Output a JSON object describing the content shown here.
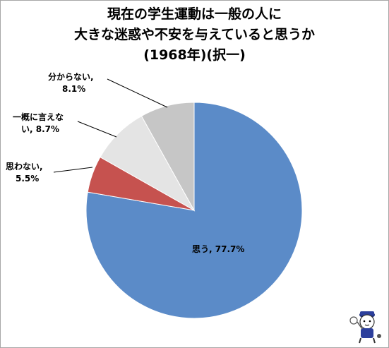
{
  "title_lines": [
    "現在の学生運動は一般の人に",
    "大きな迷惑や不安を与えていると思うか",
    "(1968年)(択一)"
  ],
  "chart_data": {
    "type": "pie",
    "title": "現在の学生運動は一般の人に大きな迷惑や不安を与えていると思うか(1968年)(択一)",
    "categories": [
      "思う",
      "思わない",
      "一概に言えない",
      "分からない"
    ],
    "values": [
      77.7,
      5.5,
      8.7,
      8.1
    ],
    "unit": "%",
    "start_angle_deg": 0,
    "direction": "clockwise",
    "colors": [
      "#5b8bc8",
      "#c6524f",
      "#e4e4e4",
      "#c6c6c6"
    ],
    "legend": "none",
    "labels": [
      {
        "name": "思う",
        "sep": ", ",
        "pct": "77.7%"
      },
      {
        "name": "思わない",
        "sep": ",",
        "pct": "5.5%"
      },
      {
        "name": "一概に言えな",
        "name2": "い",
        "sep": ", ",
        "pct": "8.7%"
      },
      {
        "name": "分からない",
        "sep": ",",
        "pct": "8.1%"
      }
    ]
  }
}
